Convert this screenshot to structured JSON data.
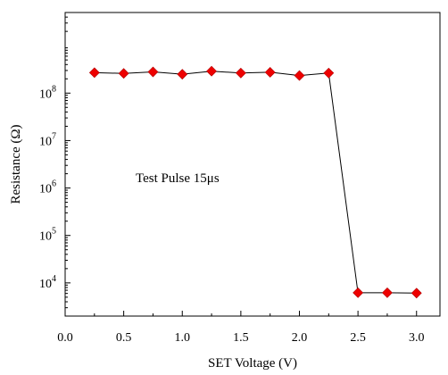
{
  "chart_data": {
    "type": "line",
    "title": "",
    "xlabel": "SET Voltage (V)",
    "ylabel": "Resistance (Ω)",
    "xlim": [
      0.0,
      3.2
    ],
    "ylim": [
      2000,
      5000000000
    ],
    "y_scale": "log",
    "grid": false,
    "legend": "none",
    "x_ticks": [
      "0.0",
      "0.5",
      "1.0",
      "1.5",
      "2.0",
      "2.5",
      "3.0"
    ],
    "x_tick_values": [
      0.0,
      0.5,
      1.0,
      1.5,
      2.0,
      2.5,
      3.0
    ],
    "y_ticks": [
      {
        "value": 10000,
        "base": "10",
        "exp": "4"
      },
      {
        "value": 100000,
        "base": "10",
        "exp": "5"
      },
      {
        "value": 1000000,
        "base": "10",
        "exp": "6"
      },
      {
        "value": 10000000,
        "base": "10",
        "exp": "7"
      },
      {
        "value": 100000000,
        "base": "10",
        "exp": "8"
      }
    ],
    "annotation": "Test Pulse 15μs",
    "series": [
      {
        "color": "#ee0000",
        "marker": "diamond",
        "x": [
          0.25,
          0.5,
          0.75,
          1.0,
          1.25,
          1.5,
          1.75,
          2.0,
          2.25,
          2.5,
          2.75,
          3.0
        ],
        "y": [
          270000000,
          260000000,
          280000000,
          250000000,
          290000000,
          265000000,
          275000000,
          235000000,
          265000000,
          6200,
          6200,
          6100
        ]
      }
    ]
  }
}
